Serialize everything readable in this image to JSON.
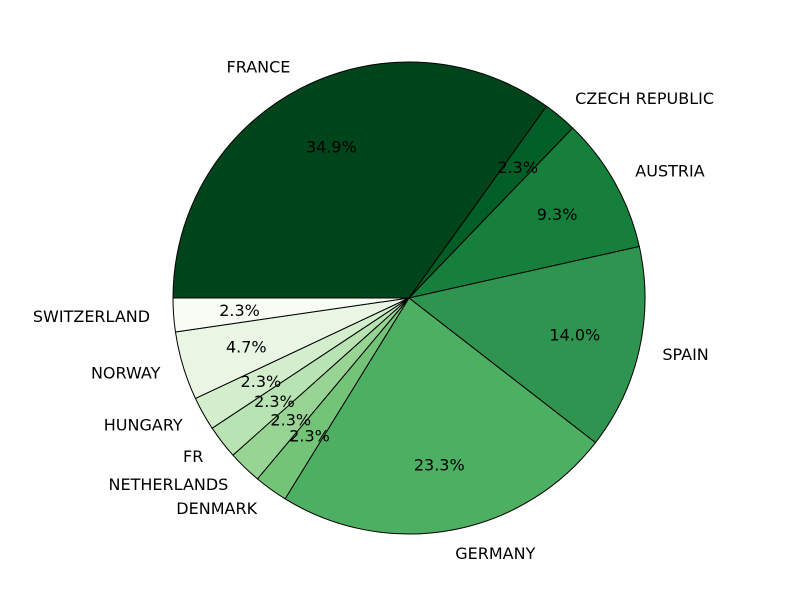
{
  "chart_data": {
    "type": "pie",
    "title": "",
    "start_angle_deg": 180,
    "direction": "clockwise",
    "slices": [
      {
        "label": "FRANCE",
        "value": 34.9,
        "pct_label": "34.9%",
        "color": "#00441b"
      },
      {
        "label": "CZECH REPUBLIC",
        "value": 2.3,
        "pct_label": "2.3%",
        "color": "#005e26"
      },
      {
        "label": "AUSTRIA",
        "value": 9.3,
        "pct_label": "9.3%",
        "color": "#157f3b"
      },
      {
        "label": "SPAIN",
        "value": 14.0,
        "pct_label": "14.0%",
        "color": "#2f944f"
      },
      {
        "label": "GERMANY",
        "value": 23.3,
        "pct_label": "23.3%",
        "color": "#4daf62"
      },
      {
        "label": "DENMARK",
        "value": 2.3,
        "pct_label": "2.3%",
        "color": "#73c476"
      },
      {
        "label": "NETHERLANDS",
        "value": 2.3,
        "pct_label": "2.3%",
        "color": "#98d594"
      },
      {
        "label": "FR",
        "value": 2.3,
        "pct_label": "2.3%",
        "color": "#b8e3b2"
      },
      {
        "label": "HUNGARY",
        "value": 2.3,
        "pct_label": "2.3%",
        "color": "#d3eecd"
      },
      {
        "label": "NORWAY",
        "value": 4.7,
        "pct_label": "4.7%",
        "color": "#e8f6e3"
      },
      {
        "label": "SWITZERLAND",
        "value": 2.3,
        "pct_label": "2.3%",
        "color": "#f7fcf5"
      }
    ]
  }
}
